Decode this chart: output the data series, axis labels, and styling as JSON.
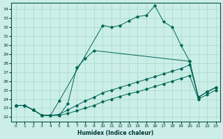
{
  "xlabel": "Humidex (Indice chaleur)",
  "bg_color": "#cceee8",
  "grid_color": "#aaddcc",
  "line_color": "#006655",
  "xlim": [
    -0.5,
    23.5
  ],
  "ylim": [
    21.5,
    34.7
  ],
  "xticks": [
    0,
    1,
    2,
    3,
    4,
    5,
    6,
    7,
    8,
    9,
    10,
    11,
    12,
    13,
    14,
    15,
    16,
    17,
    18,
    19,
    20,
    21,
    22,
    23
  ],
  "yticks": [
    22,
    23,
    24,
    25,
    26,
    27,
    28,
    29,
    30,
    31,
    32,
    33,
    34
  ],
  "line1_x": [
    0,
    1,
    2,
    3,
    4,
    5,
    10,
    11,
    12,
    13,
    14,
    15,
    16,
    17,
    18,
    19,
    20,
    21,
    22,
    23
  ],
  "line1_y": [
    23.3,
    23.3,
    22.8,
    22.2,
    22.2,
    23.8,
    32.2,
    32.0,
    32.2,
    32.7,
    33.2,
    33.3,
    34.4,
    32.6,
    32.0,
    30.0,
    28.2,
    24.2,
    24.8,
    25.3
  ],
  "line2_x": [
    0,
    1,
    2,
    3,
    4,
    5,
    6,
    7,
    8,
    9,
    20,
    21,
    22,
    23
  ],
  "line2_y": [
    23.3,
    23.3,
    22.8,
    22.2,
    22.2,
    22.2,
    23.5,
    27.5,
    28.5,
    29.4,
    28.2,
    24.2,
    24.8,
    25.3
  ],
  "line3_x": [
    0,
    1,
    2,
    3,
    4,
    5,
    6,
    7,
    8,
    9,
    10,
    11,
    12,
    13,
    14,
    15,
    16,
    17,
    18,
    19,
    20,
    21,
    22,
    23
  ],
  "line3_y": [
    23.3,
    23.3,
    22.8,
    22.2,
    22.2,
    22.3,
    22.8,
    23.3,
    23.8,
    24.2,
    24.7,
    25.0,
    25.3,
    25.6,
    25.9,
    26.2,
    26.5,
    26.8,
    27.1,
    27.4,
    27.8,
    24.2,
    24.8,
    25.3
  ],
  "line4_x": [
    0,
    1,
    2,
    3,
    4,
    5,
    6,
    7,
    8,
    9,
    10,
    11,
    12,
    13,
    14,
    15,
    16,
    17,
    18,
    19,
    20,
    21,
    22,
    23
  ],
  "line4_y": [
    23.3,
    23.3,
    22.8,
    22.2,
    22.2,
    22.2,
    22.4,
    22.7,
    23.0,
    23.3,
    23.7,
    24.0,
    24.3,
    24.6,
    24.8,
    25.1,
    25.4,
    25.7,
    26.0,
    26.3,
    26.6,
    24.0,
    24.5,
    25.0
  ]
}
